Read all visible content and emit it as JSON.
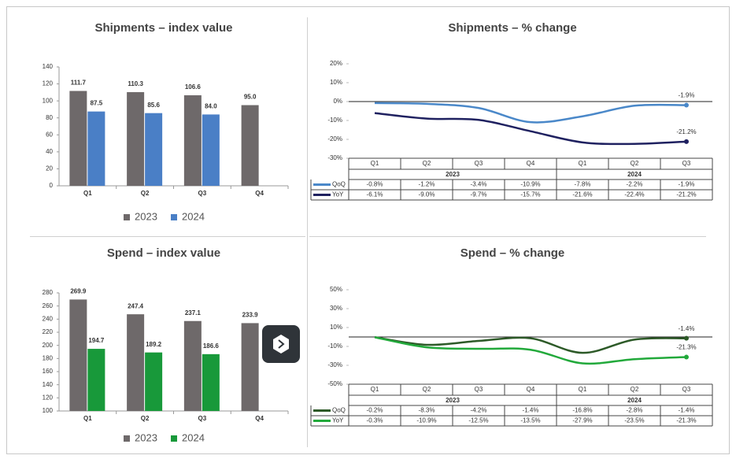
{
  "chart_data": [
    {
      "type": "bar",
      "title": "Shipments – index value",
      "categories": [
        "Q1",
        "Q2",
        "Q3",
        "Q4"
      ],
      "series": [
        {
          "name": "2023",
          "color": "#6e696a",
          "values": [
            111.7,
            110.3,
            106.6,
            95.0
          ],
          "value_labels": [
            "111.7",
            "110.3",
            "106.6",
            "95.0"
          ]
        },
        {
          "name": "2024",
          "color": "#4a7fc6",
          "values": [
            87.5,
            85.6,
            84.0,
            null
          ],
          "value_labels": [
            "87.5",
            "85.6",
            "84.0",
            null
          ]
        }
      ],
      "ylim": [
        0,
        140
      ],
      "yticks": [
        0,
        20,
        40,
        60,
        80,
        100,
        120,
        140
      ]
    },
    {
      "type": "line",
      "title": "Shipments – % change",
      "groups": [
        {
          "name": "2023",
          "categories": [
            "Q1",
            "Q2",
            "Q3",
            "Q4"
          ]
        },
        {
          "name": "2024",
          "categories": [
            "Q1",
            "Q2",
            "Q3"
          ]
        }
      ],
      "series": [
        {
          "name": "QoQ",
          "color": "#4a88c9",
          "values": [
            -0.8,
            -1.2,
            -3.4,
            -10.9,
            -7.8,
            -2.2,
            -1.9
          ],
          "value_labels": [
            "-0.8%",
            "-1.2%",
            "-3.4%",
            "-10.9%",
            "-7.8%",
            "-2.2%",
            "-1.9%"
          ]
        },
        {
          "name": "YoY",
          "color": "#1f2160",
          "values": [
            -6.1,
            -9.0,
            -9.7,
            -15.7,
            -21.6,
            -22.4,
            -21.2
          ],
          "value_labels": [
            "-6.1%",
            "-9.0%",
            "-9.7%",
            "-15.7%",
            "-21.6%",
            "-22.4%",
            "-21.2%"
          ]
        }
      ],
      "ylim": [
        -30,
        20
      ],
      "yticks": [
        {
          "value": 20,
          "label": "20%"
        },
        {
          "value": 10,
          "label": "10%"
        },
        {
          "value": 0,
          "label": "0%"
        },
        {
          "value": -10,
          "label": "-10%"
        },
        {
          "value": -20,
          "label": "-20%"
        },
        {
          "value": -30,
          "label": "-30%"
        }
      ]
    },
    {
      "type": "bar",
      "title": "Spend – index value",
      "categories": [
        "Q1",
        "Q2",
        "Q3",
        "Q4"
      ],
      "series": [
        {
          "name": "2023",
          "color": "#6e696a",
          "values": [
            269.9,
            247.4,
            237.1,
            233.9
          ]
        },
        {
          "name": "2024",
          "color": "#18993a",
          "values": [
            194.7,
            189.2,
            186.6,
            null
          ]
        }
      ],
      "ylim": [
        100,
        280
      ],
      "yticks": [
        100,
        120,
        140,
        160,
        180,
        200,
        220,
        240,
        260,
        280
      ]
    },
    {
      "type": "line",
      "title": "Spend – % change",
      "groups": [
        {
          "name": "2023",
          "categories": [
            "Q1",
            "Q2",
            "Q3",
            "Q4"
          ]
        },
        {
          "name": "2024",
          "categories": [
            "Q1",
            "Q2",
            "Q3"
          ]
        }
      ],
      "series": [
        {
          "name": "QoQ",
          "color": "#2d5a28",
          "values": [
            -0.2,
            -8.3,
            -4.2,
            -1.4,
            -16.8,
            -2.8,
            -1.4
          ],
          "value_labels": [
            "-0.2%",
            "-8.3%",
            "-4.2%",
            "-1.4%",
            "-16.8%",
            "-2.8%",
            "-1.4%"
          ]
        },
        {
          "name": "YoY",
          "color": "#22a93b",
          "values": [
            -0.3,
            -10.9,
            -12.5,
            -13.5,
            -27.9,
            -23.5,
            -21.3
          ],
          "value_labels": [
            "-0.3%",
            "-10.9%",
            "-12.5%",
            "-13.5%",
            "-27.9%",
            "-23.5%",
            "-21.3%"
          ]
        }
      ],
      "ylim": [
        -50,
        50
      ],
      "yticks": [
        {
          "value": 50,
          "label": "50%"
        },
        {
          "value": 30,
          "label": "30%"
        },
        {
          "value": 10,
          "label": "10%"
        },
        {
          "value": -10,
          "label": "-10%"
        },
        {
          "value": -30,
          "label": "-30%"
        },
        {
          "value": -50,
          "label": "-50%"
        }
      ]
    }
  ]
}
